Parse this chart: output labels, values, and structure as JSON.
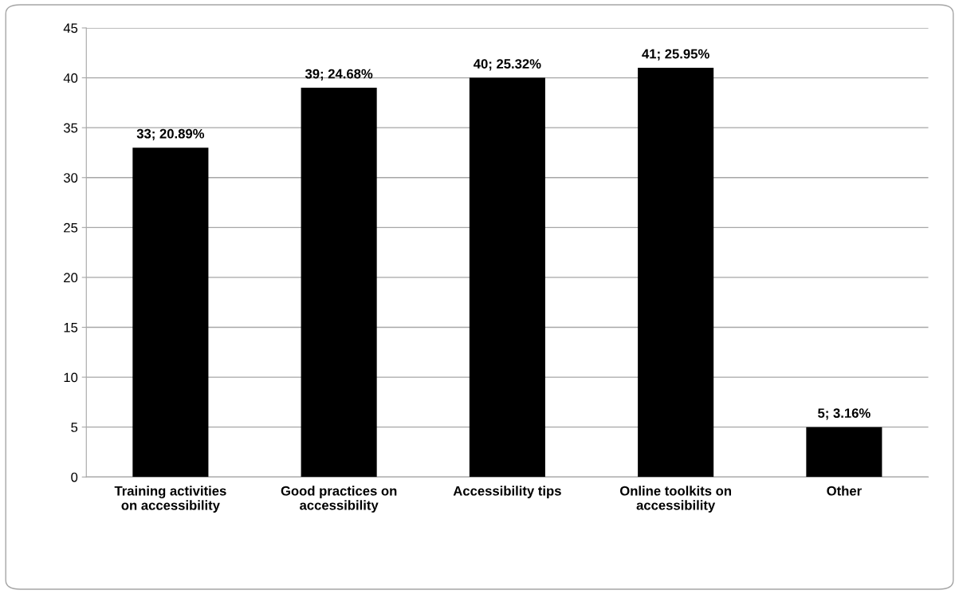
{
  "chart_data": {
    "type": "bar",
    "categories": [
      "Training activities\non accessibility",
      "Good practices on\naccessibility",
      "Accessibility tips",
      "Online toolkits on\naccessibility",
      "Other"
    ],
    "values": [
      33,
      39,
      40,
      41,
      5
    ],
    "value_labels": [
      "33; 20.89%",
      "39; 24.68%",
      "40; 25.32%",
      "41; 25.95%",
      "5; 3.16%"
    ],
    "color": "#000000",
    "ylim": [
      0,
      45
    ],
    "yticks": [
      0,
      5,
      10,
      15,
      20,
      25,
      30,
      35,
      40,
      45
    ],
    "grid": "y",
    "legend": false
  }
}
